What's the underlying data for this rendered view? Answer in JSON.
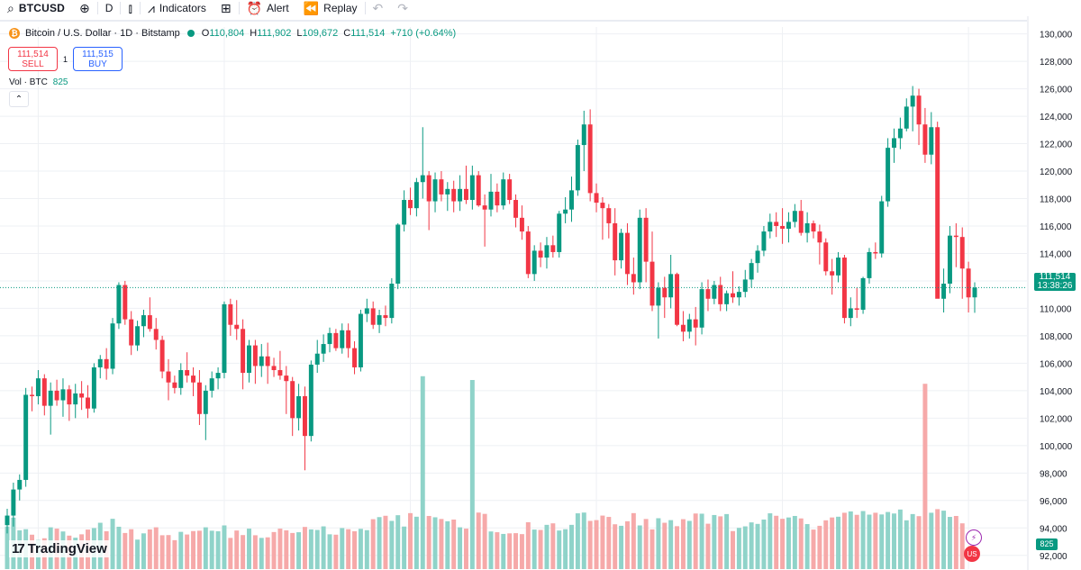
{
  "toolbar": {
    "symbol": "BTCUSD",
    "interval": "D",
    "indicators_label": "Indicators",
    "alert_label": "Alert",
    "replay_label": "Replay"
  },
  "legend": {
    "title": "Bitcoin / U.S. Dollar · 1D · Bitstamp",
    "o_label": "O",
    "o_value": "110,804",
    "h_label": "H",
    "h_value": "111,902",
    "l_label": "L",
    "l_value": "109,672",
    "c_label": "C",
    "c_value": "111,514",
    "change": "+710 (+0.64%)"
  },
  "trade": {
    "sell_price": "111,514",
    "sell_label": "SELL",
    "spread": "1",
    "buy_price": "111,515",
    "buy_label": "BUY"
  },
  "volume_legend": {
    "label": "Vol · BTC",
    "value": "825"
  },
  "price_label": {
    "price": "111,514",
    "countdown": "13:38:26"
  },
  "volume_label": "825",
  "logo_text": "TradingView",
  "colors": {
    "up": "#089981",
    "down": "#f23645",
    "up_vol": "#8fd3c9",
    "down_vol": "#f6a9a9",
    "grid": "#eef0f4"
  },
  "chart_data": {
    "type": "candlestick",
    "title": "Bitcoin / U.S. Dollar · 1D · Bitstamp",
    "ylim": [
      91000,
      130500
    ],
    "y_ticks": [
      "130,000",
      "128,000",
      "126,000",
      "124,000",
      "122,000",
      "120,000",
      "118,000",
      "116,000",
      "114,000",
      "112,000",
      "110,000",
      "108,000",
      "106,000",
      "104,000",
      "102,000",
      "100,000",
      "98,000",
      "96,000",
      "94,000",
      "92,000"
    ],
    "current_price": 111514,
    "ohlc": [
      [
        94200,
        95400,
        93600,
        94900
      ],
      [
        94900,
        97300,
        94100,
        96800
      ],
      [
        96800,
        97900,
        96000,
        97500
      ],
      [
        97500,
        104200,
        97000,
        103700
      ],
      [
        103700,
        104300,
        102500,
        103600
      ],
      [
        103600,
        105500,
        103000,
        104900
      ],
      [
        104900,
        105200,
        102200,
        102900
      ],
      [
        102900,
        104600,
        100800,
        104000
      ],
      [
        104000,
        104800,
        102900,
        103300
      ],
      [
        103300,
        104900,
        102100,
        104100
      ],
      [
        104100,
        104400,
        101800,
        103000
      ],
      [
        103000,
        104500,
        102000,
        103800
      ],
      [
        103800,
        104700,
        102600,
        103500
      ],
      [
        103500,
        104400,
        102000,
        102700
      ],
      [
        102700,
        106000,
        102400,
        105700
      ],
      [
        105700,
        106600,
        104900,
        106300
      ],
      [
        106300,
        107100,
        104800,
        105600
      ],
      [
        105600,
        109300,
        105200,
        108900
      ],
      [
        108900,
        111900,
        108500,
        111700
      ],
      [
        111700,
        112000,
        108800,
        109200
      ],
      [
        109200,
        109800,
        106600,
        107300
      ],
      [
        107300,
        109100,
        106900,
        108700
      ],
      [
        108700,
        109900,
        107900,
        109500
      ],
      [
        109500,
        110800,
        108300,
        108500
      ],
      [
        108500,
        109300,
        107000,
        107700
      ],
      [
        107700,
        108000,
        104900,
        105400
      ],
      [
        105400,
        106300,
        103300,
        104600
      ],
      [
        104600,
        105100,
        103800,
        104200
      ],
      [
        104200,
        106000,
        103700,
        105500
      ],
      [
        105500,
        106800,
        104600,
        105100
      ],
      [
        105100,
        105700,
        103600,
        104600
      ],
      [
        104600,
        105500,
        101500,
        102300
      ],
      [
        102300,
        104400,
        100400,
        104000
      ],
      [
        104000,
        105400,
        103500,
        104900
      ],
      [
        104900,
        105700,
        104100,
        105300
      ],
      [
        105300,
        110500,
        104900,
        110300
      ],
      [
        110300,
        110700,
        108000,
        108800
      ],
      [
        108800,
        110600,
        107700,
        108500
      ],
      [
        108500,
        109200,
        104100,
        105300
      ],
      [
        105300,
        107700,
        104600,
        107300
      ],
      [
        107300,
        107700,
        104500,
        105800
      ],
      [
        105800,
        107400,
        105000,
        106500
      ],
      [
        106500,
        107500,
        104500,
        105800
      ],
      [
        105800,
        106400,
        105000,
        105500
      ],
      [
        105500,
        106900,
        104800,
        105100
      ],
      [
        105100,
        105800,
        102300,
        104700
      ],
      [
        104700,
        105000,
        100700,
        102000
      ],
      [
        102000,
        104500,
        101100,
        103600
      ],
      [
        103600,
        104300,
        98200,
        100700
      ],
      [
        100700,
        106200,
        100300,
        105900
      ],
      [
        105900,
        107700,
        105300,
        106700
      ],
      [
        106700,
        108100,
        106100,
        107400
      ],
      [
        107400,
        108600,
        106800,
        108200
      ],
      [
        108200,
        108500,
        106900,
        107100
      ],
      [
        107100,
        108900,
        106700,
        108400
      ],
      [
        108400,
        108900,
        106400,
        107100
      ],
      [
        107100,
        107600,
        105200,
        105700
      ],
      [
        105700,
        109900,
        105400,
        109600
      ],
      [
        109600,
        110700,
        109000,
        110000
      ],
      [
        110000,
        110500,
        108500,
        108800
      ],
      [
        108800,
        109900,
        108200,
        109500
      ],
      [
        109500,
        110200,
        108700,
        109300
      ],
      [
        109300,
        112200,
        108900,
        111800
      ],
      [
        111800,
        116200,
        111400,
        116100
      ],
      [
        116100,
        118600,
        115600,
        117900
      ],
      [
        117900,
        118800,
        116800,
        117300
      ],
      [
        117300,
        119500,
        116700,
        119200
      ],
      [
        119200,
        123200,
        118000,
        119700
      ],
      [
        119700,
        120000,
        115700,
        117800
      ],
      [
        117800,
        119900,
        117000,
        119400
      ],
      [
        119400,
        120000,
        117800,
        118300
      ],
      [
        118300,
        119200,
        117100,
        118700
      ],
      [
        118700,
        119300,
        117000,
        117800
      ],
      [
        117800,
        119700,
        117100,
        118700
      ],
      [
        118700,
        120400,
        117600,
        117900
      ],
      [
        117900,
        120400,
        117200,
        119700
      ],
      [
        119700,
        120000,
        117400,
        117500
      ],
      [
        117500,
        118300,
        114500,
        117200
      ],
      [
        117200,
        119800,
        116700,
        118500
      ],
      [
        118500,
        119100,
        117000,
        117500
      ],
      [
        117500,
        119900,
        117200,
        119400
      ],
      [
        119400,
        119800,
        117600,
        117900
      ],
      [
        117900,
        118300,
        115900,
        116600
      ],
      [
        116600,
        117500,
        115000,
        115600
      ],
      [
        115600,
        116000,
        112200,
        112500
      ],
      [
        112500,
        114600,
        112000,
        114200
      ],
      [
        114200,
        114800,
        113000,
        113700
      ],
      [
        113700,
        115200,
        112900,
        114600
      ],
      [
        114600,
        115300,
        113700,
        114100
      ],
      [
        114100,
        117100,
        113700,
        116900
      ],
      [
        116900,
        118100,
        116200,
        117200
      ],
      [
        117200,
        119600,
        116300,
        118600
      ],
      [
        118600,
        122300,
        118200,
        121900
      ],
      [
        121900,
        124400,
        120000,
        123400
      ],
      [
        123400,
        124500,
        117800,
        118400
      ],
      [
        118400,
        119100,
        117000,
        117700
      ],
      [
        117700,
        118100,
        115000,
        117300
      ],
      [
        117300,
        117600,
        115100,
        116200
      ],
      [
        116200,
        117300,
        112400,
        113500
      ],
      [
        113500,
        115800,
        112900,
        115500
      ],
      [
        115500,
        116200,
        111700,
        112500
      ],
      [
        112500,
        113700,
        111000,
        111900
      ],
      [
        111900,
        117200,
        111400,
        116600
      ],
      [
        116600,
        117300,
        111900,
        113400
      ],
      [
        113400,
        115600,
        109800,
        110200
      ],
      [
        110200,
        111900,
        107800,
        111500
      ],
      [
        111500,
        112300,
        109300,
        110800
      ],
      [
        110800,
        113900,
        110000,
        112500
      ],
      [
        112500,
        112600,
        108700,
        108800
      ],
      [
        108800,
        109800,
        107600,
        108300
      ],
      [
        108300,
        109600,
        107800,
        109200
      ],
      [
        109200,
        110100,
        107300,
        108600
      ],
      [
        108600,
        111900,
        108100,
        111400
      ],
      [
        111400,
        112100,
        109800,
        110700
      ],
      [
        110700,
        112000,
        110300,
        111700
      ],
      [
        111700,
        112300,
        109800,
        110300
      ],
      [
        110300,
        111300,
        109800,
        111100
      ],
      [
        111100,
        112700,
        110400,
        110800
      ],
      [
        110800,
        111600,
        110200,
        111200
      ],
      [
        111200,
        112800,
        110800,
        112100
      ],
      [
        112100,
        113600,
        111500,
        113300
      ],
      [
        113300,
        114600,
        112600,
        114200
      ],
      [
        114200,
        116000,
        113800,
        115600
      ],
      [
        115600,
        116900,
        115100,
        116300
      ],
      [
        116300,
        117000,
        115200,
        116000
      ],
      [
        116000,
        117300,
        114700,
        115800
      ],
      [
        115800,
        117000,
        114800,
        116300
      ],
      [
        116300,
        117600,
        115900,
        117100
      ],
      [
        117100,
        117900,
        115300,
        115500
      ],
      [
        115500,
        117000,
        114800,
        116200
      ],
      [
        116200,
        116400,
        115100,
        115600
      ],
      [
        115600,
        116100,
        113200,
        114800
      ],
      [
        114800,
        115100,
        112400,
        112700
      ],
      [
        112700,
        113600,
        111000,
        112400
      ],
      [
        112400,
        114100,
        111900,
        113700
      ],
      [
        113700,
        113900,
        108900,
        109300
      ],
      [
        109300,
        110800,
        108700,
        110000
      ],
      [
        110000,
        111500,
        109300,
        109900
      ],
      [
        109900,
        112300,
        109600,
        112200
      ],
      [
        112200,
        114400,
        111800,
        114100
      ],
      [
        114100,
        114800,
        113600,
        114000
      ],
      [
        114000,
        118200,
        113700,
        117800
      ],
      [
        117800,
        122400,
        117400,
        121700
      ],
      [
        121700,
        123100,
        120600,
        122400
      ],
      [
        122400,
        123900,
        121600,
        123100
      ],
      [
        123100,
        125300,
        122900,
        124700
      ],
      [
        124700,
        126200,
        122900,
        125500
      ],
      [
        125500,
        126000,
        121900,
        123400
      ],
      [
        123400,
        124600,
        120600,
        121200
      ],
      [
        121200,
        124300,
        120500,
        123200
      ],
      [
        123200,
        123600,
        110800,
        110700
      ],
      [
        110700,
        112900,
        109700,
        111800
      ],
      [
        111800,
        116000,
        111100,
        115300
      ],
      [
        115300,
        116200,
        113000,
        115200
      ],
      [
        115200,
        115900,
        110700,
        112900
      ],
      [
        112900,
        113400,
        109700,
        110800
      ],
      [
        110800,
        111900,
        109672,
        111514
      ]
    ],
    "volume": [
      22.5,
      27.2,
      20.5,
      21.1,
      18.2,
      15.4,
      16.3,
      22.1,
      21.4,
      19.9,
      17.7,
      16.6,
      18.4,
      20.9,
      21.7,
      24.5,
      20.0,
      26.6,
      22.4,
      19.1,
      21.1,
      15.6,
      18.9,
      21.0,
      22.1,
      17.9,
      18.0,
      15.3,
      19.7,
      18.3,
      20.1,
      20.3,
      22.1,
      20.3,
      20.0,
      23.1,
      16.5,
      20.4,
      18.0,
      21.4,
      17.9,
      16.5,
      16.8,
      19.6,
      21.4,
      20.5,
      19.1,
      19.5,
      22.3,
      21.0,
      20.7,
      22.6,
      18.4,
      18.2,
      21.7,
      21.1,
      20.0,
      21.3,
      20.6,
      26.4,
      27.5,
      28.2,
      25.5,
      28.5,
      22.5,
      29.6,
      27.7,
      29.8,
      28.1,
      27.4,
      26.5,
      25.3,
      26.2,
      22.1,
      21.4,
      22.8,
      29.9,
      29.2,
      19.9,
      19.5,
      18.6,
      18.9,
      19.0,
      18.5,
      24.8,
      20.9,
      20.7,
      23.4,
      24.2,
      20.4,
      21.1,
      23.4,
      29.5,
      29.9,
      25.5,
      25.9,
      28.3,
      27.6,
      23.7,
      22.9,
      25.3,
      29.6,
      23.1,
      26.5,
      21.0,
      26.9,
      24.5,
      25.9,
      22.7,
      26.4,
      25.5,
      29.4,
      29.3,
      24.0,
      28.6,
      27.9,
      29.1,
      20.1,
      21.8,
      22.6,
      24.7,
      23.9,
      26.2,
      29.5,
      28.2,
      26.6,
      27.3,
      28.1,
      26.8,
      23.8,
      20.9,
      22.9,
      25.8,
      27.3,
      27.7,
      29.8,
      30.5,
      28.7,
      30.7,
      28.8,
      29.8,
      28.9,
      30.2,
      29.4,
      31.5,
      25.8,
      29.1,
      28.0,
      32.9,
      29.8,
      31.7,
      30.9,
      27.6,
      28.1,
      24.2
    ],
    "volume_spikes": {
      "67": 102,
      "75": 100,
      "148": 98
    }
  }
}
